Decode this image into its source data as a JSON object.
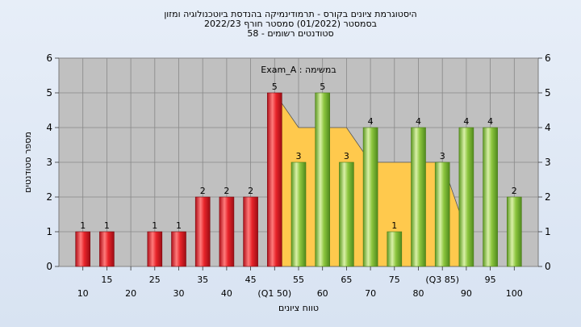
{
  "titles": {
    "line1": "היסטוגרמת ציונים בקורס - תרמודינמיקה בהנדסת ביוטכנולוגיה ומזון",
    "line2": "בסמסטר  (01/2022)  סמסטר חורף 2022/23",
    "line3": "58 - סטודנטים רשומים"
  },
  "colors": {
    "plot_background": "#c0c0c0",
    "below_median_bar": "#e8242a",
    "above_median_bar": "#8dc63f",
    "cumulative_area": "#ffc94d",
    "grid": "#808080"
  },
  "chart_data": {
    "type": "bar",
    "title": "היסטוגרמת ציונים בקורס - תרמודינמיקה בהנדסת ביוטכנולוגיה ומזון",
    "subtitle": "בסמסטר  (01/2022)  סמסטר חורף 2022/23 / 58 - סטודנטים רשומים",
    "annotation": "Exam_A : במשימה",
    "xlabel": "טווח ציונים",
    "ylabel": "מספר סטודנטים",
    "ylim": [
      0,
      6
    ],
    "yticks": [
      0,
      1,
      2,
      3,
      4,
      5,
      6
    ],
    "grid": true,
    "x_tick_labels": [
      {
        "x": 10,
        "label": "10",
        "row": "bottom"
      },
      {
        "x": 15,
        "label": "15",
        "row": "top"
      },
      {
        "x": 20,
        "label": "20",
        "row": "bottom"
      },
      {
        "x": 25,
        "label": "25",
        "row": "top"
      },
      {
        "x": 30,
        "label": "30",
        "row": "bottom"
      },
      {
        "x": 35,
        "label": "35",
        "row": "top"
      },
      {
        "x": 40,
        "label": "40",
        "row": "bottom"
      },
      {
        "x": 45,
        "label": "45",
        "row": "top"
      },
      {
        "x": 50,
        "label": "(Q1 50)",
        "row": "bottom"
      },
      {
        "x": 55,
        "label": "55",
        "row": "top"
      },
      {
        "x": 60,
        "label": "60",
        "row": "bottom"
      },
      {
        "x": 65,
        "label": "65",
        "row": "top"
      },
      {
        "x": 70,
        "label": "70",
        "row": "bottom"
      },
      {
        "x": 75,
        "label": "75",
        "row": "top"
      },
      {
        "x": 80,
        "label": "80",
        "row": "bottom"
      },
      {
        "x": 85,
        "label": "(Q3 85)",
        "row": "top"
      },
      {
        "x": 90,
        "label": "90",
        "row": "bottom"
      },
      {
        "x": 95,
        "label": "95",
        "row": "top"
      },
      {
        "x": 100,
        "label": "100",
        "row": "bottom"
      }
    ],
    "bars": [
      {
        "x": 10,
        "value": 1,
        "group": "red"
      },
      {
        "x": 15,
        "value": 1,
        "group": "red"
      },
      {
        "x": 25,
        "value": 1,
        "group": "red"
      },
      {
        "x": 30,
        "value": 1,
        "group": "red"
      },
      {
        "x": 35,
        "value": 2,
        "group": "red"
      },
      {
        "x": 40,
        "value": 2,
        "group": "red"
      },
      {
        "x": 45,
        "value": 2,
        "group": "red"
      },
      {
        "x": 50,
        "value": 5,
        "group": "red"
      },
      {
        "x": 55,
        "value": 3,
        "group": "green"
      },
      {
        "x": 60,
        "value": 5,
        "group": "green"
      },
      {
        "x": 65,
        "value": 3,
        "group": "green"
      },
      {
        "x": 70,
        "value": 4,
        "group": "green"
      },
      {
        "x": 75,
        "value": 1,
        "group": "green"
      },
      {
        "x": 80,
        "value": 4,
        "group": "green"
      },
      {
        "x": 85,
        "value": 3,
        "group": "green"
      },
      {
        "x": 90,
        "value": 4,
        "group": "green"
      },
      {
        "x": 95,
        "value": 4,
        "group": "green"
      },
      {
        "x": 100,
        "value": 2,
        "group": "green"
      }
    ],
    "area_series": [
      {
        "x": 50,
        "y": 5
      },
      {
        "x": 55,
        "y": 4
      },
      {
        "x": 65,
        "y": 4
      },
      {
        "x": 70,
        "y": 3
      },
      {
        "x": 85,
        "y": 3
      },
      {
        "x": 90,
        "y": 1
      }
    ]
  }
}
